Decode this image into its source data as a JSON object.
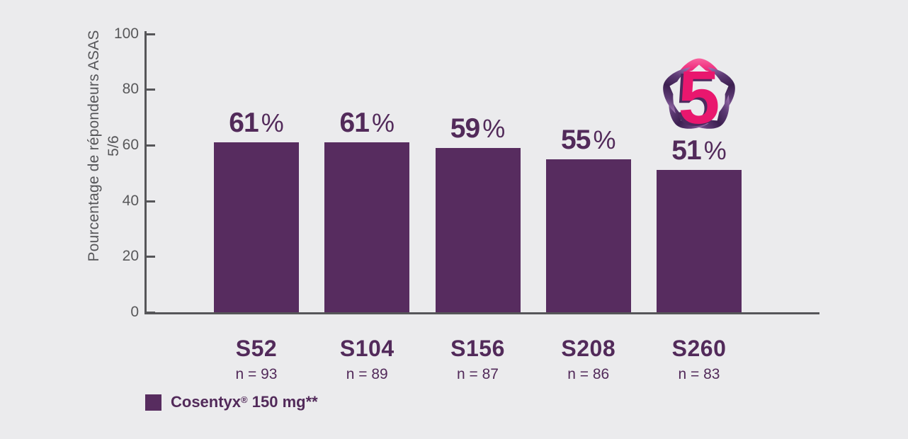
{
  "page": {
    "background_color": "#ebebed"
  },
  "chart_data": {
    "type": "bar",
    "title": "",
    "ylabel": "Pourcentage de répondeurs ASAS 5/6",
    "xlabel": "",
    "ylim": [
      0,
      100
    ],
    "yticks": [
      "0",
      "20",
      "40",
      "60",
      "80",
      "100"
    ],
    "grid": false,
    "categories": [
      "S52",
      "S104",
      "S156",
      "S208",
      "S260"
    ],
    "n_labels": [
      "n = 93",
      "n = 89",
      "n = 87",
      "n = 86",
      "n = 83"
    ],
    "values": [
      61,
      61,
      59,
      55,
      51
    ],
    "percent_sign": "%",
    "series": [
      {
        "name": "Cosentyx® 150 mg**",
        "values": [
          61,
          61,
          59,
          55,
          51
        ],
        "color": "#572c5f"
      }
    ],
    "legend_position": "bottom-left",
    "annotation": "5-year wreath badge above S260 bar"
  },
  "legend": {
    "brand": "Cosentyx",
    "reg_mark": "®",
    "dose": "150 mg**",
    "swatch_color": "#572c5f"
  },
  "badge": {
    "number": "5"
  },
  "colors": {
    "background": "#ebebed",
    "bar": "#572c5f",
    "text_purple": "#522a5a",
    "axis_gray": "#565659",
    "tick_label_gray": "#58585a",
    "badge_pink": "#e9176e",
    "badge_wreath_dark": "#3c1f50",
    "badge_wreath_light": "#a277b4"
  }
}
